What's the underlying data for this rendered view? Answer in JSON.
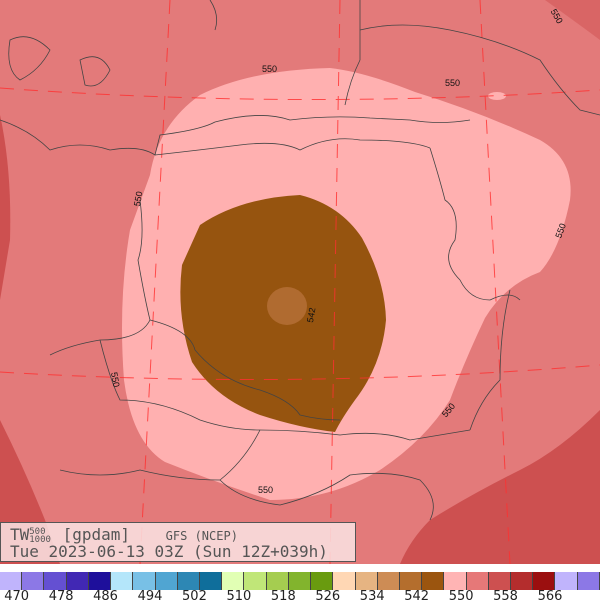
{
  "title": {
    "variable": "TW",
    "sup": "500",
    "sub": "1000",
    "unit": "[gpdam]",
    "model": "GFS (NCEP)",
    "valid": "Tue 2023-06-13 03Z (Sun 12Z+039h)"
  },
  "contour_labels": [
    "550",
    "550",
    "550",
    "550",
    "550",
    "550",
    "550",
    "550",
    "542"
  ],
  "colorbar": {
    "start": 470,
    "step": 4,
    "colors": [
      "#c0b4fc",
      "#8c78e6",
      "#6450d2",
      "#4128b4",
      "#1e0f9b",
      "#b4e6fa",
      "#78c0e6",
      "#50a5d2",
      "#2d87b4",
      "#0f6e9b",
      "#e1ffb4",
      "#c0e678",
      "#a5cd50",
      "#82b42d",
      "#699b0f",
      "#ffd7b4",
      "#e6b482",
      "#cd8c55",
      "#b46e2d",
      "#9b550f",
      "#ffb4b4",
      "#e67878",
      "#cd5050",
      "#b42d2d",
      "#9b0f0f",
      "#c0b4fc",
      "#8c78e6"
    ],
    "labels": [
      "470",
      "478",
      "486",
      "494",
      "502",
      "510",
      "518",
      "526",
      "534",
      "542",
      "550",
      "558",
      "566"
    ]
  },
  "field_colors": {
    "outer": "#e67878",
    "inner": "#ffb4b4",
    "core": "#9b550f",
    "center": "#b46e2d",
    "edge": "#cd5050"
  }
}
